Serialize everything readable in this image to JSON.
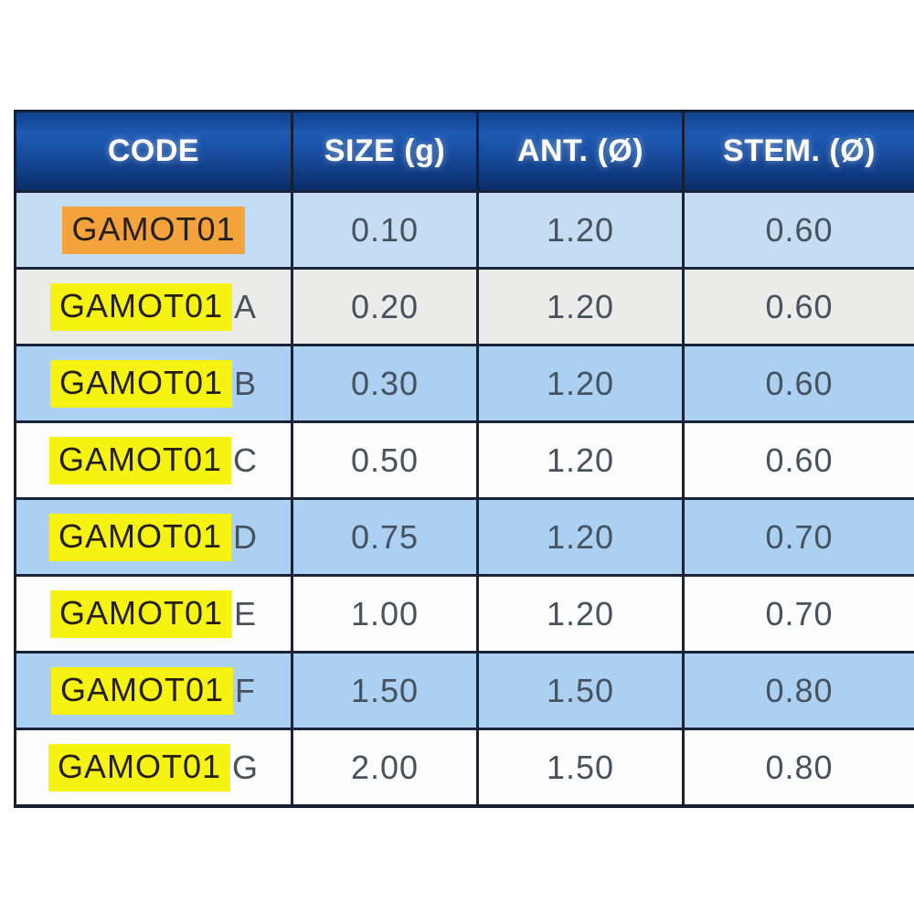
{
  "chart_data": {
    "type": "table",
    "title": "",
    "columns": [
      "CODE",
      "SIZE (g)",
      "ANT. (Ø)",
      "STEM. (Ø)"
    ],
    "rows": [
      [
        "GAMOT01",
        "0.10",
        "1.20",
        "0.60"
      ],
      [
        "GAMOT01A",
        "0.20",
        "1.20",
        "0.60"
      ],
      [
        "GAMOT01B",
        "0.30",
        "1.20",
        "0.60"
      ],
      [
        "GAMOT01C",
        "0.50",
        "1.20",
        "0.60"
      ],
      [
        "GAMOT01D",
        "0.75",
        "1.20",
        "0.70"
      ],
      [
        "GAMOT01E",
        "1.00",
        "1.20",
        "0.70"
      ],
      [
        "GAMOT01F",
        "1.50",
        "1.50",
        "0.80"
      ],
      [
        "GAMOT01G",
        "2.00",
        "1.50",
        "0.80"
      ]
    ]
  },
  "table": {
    "headers": [
      "CODE",
      "SIZE (g)",
      "ANT. (Ø)",
      "STEM. (Ø)"
    ],
    "rows": [
      {
        "code_prefix": "GAMOT01",
        "code_suffix": "",
        "highlight": "orange",
        "size": "0.10",
        "ant": "1.20",
        "stem": "0.60",
        "bg": "blue-light"
      },
      {
        "code_prefix": "GAMOT01",
        "code_suffix": "A",
        "highlight": "yellow",
        "size": "0.20",
        "ant": "1.20",
        "stem": "0.60",
        "bg": "gray"
      },
      {
        "code_prefix": "GAMOT01",
        "code_suffix": "B",
        "highlight": "yellow",
        "size": "0.30",
        "ant": "1.20",
        "stem": "0.60",
        "bg": "blue"
      },
      {
        "code_prefix": "GAMOT01",
        "code_suffix": "C",
        "highlight": "yellow",
        "size": "0.50",
        "ant": "1.20",
        "stem": "0.60",
        "bg": "white"
      },
      {
        "code_prefix": "GAMOT01",
        "code_suffix": "D",
        "highlight": "yellow",
        "size": "0.75",
        "ant": "1.20",
        "stem": "0.70",
        "bg": "blue"
      },
      {
        "code_prefix": "GAMOT01",
        "code_suffix": "E",
        "highlight": "yellow",
        "size": "1.00",
        "ant": "1.20",
        "stem": "0.70",
        "bg": "white"
      },
      {
        "code_prefix": "GAMOT01",
        "code_suffix": "F",
        "highlight": "yellow",
        "size": "1.50",
        "ant": "1.50",
        "stem": "0.80",
        "bg": "blue"
      },
      {
        "code_prefix": "GAMOT01",
        "code_suffix": "G",
        "highlight": "yellow",
        "size": "2.00",
        "ant": "1.50",
        "stem": "0.80",
        "bg": "white"
      }
    ],
    "colors": {
      "header_gradient_top": "#1e5ab4",
      "header_gradient_bottom": "#0a2c68",
      "header_text": "#ffffff",
      "grid_line": "#1a2438",
      "row_blue_light": "#c5ddf2",
      "row_gray": "#ebebe9",
      "row_blue": "#abd0f2",
      "row_white": "#fdfdfd",
      "highlight_orange": "#f4a23c",
      "highlight_yellow": "#f6f312",
      "value_text": "#47525f",
      "code_text": "#241f14"
    }
  }
}
